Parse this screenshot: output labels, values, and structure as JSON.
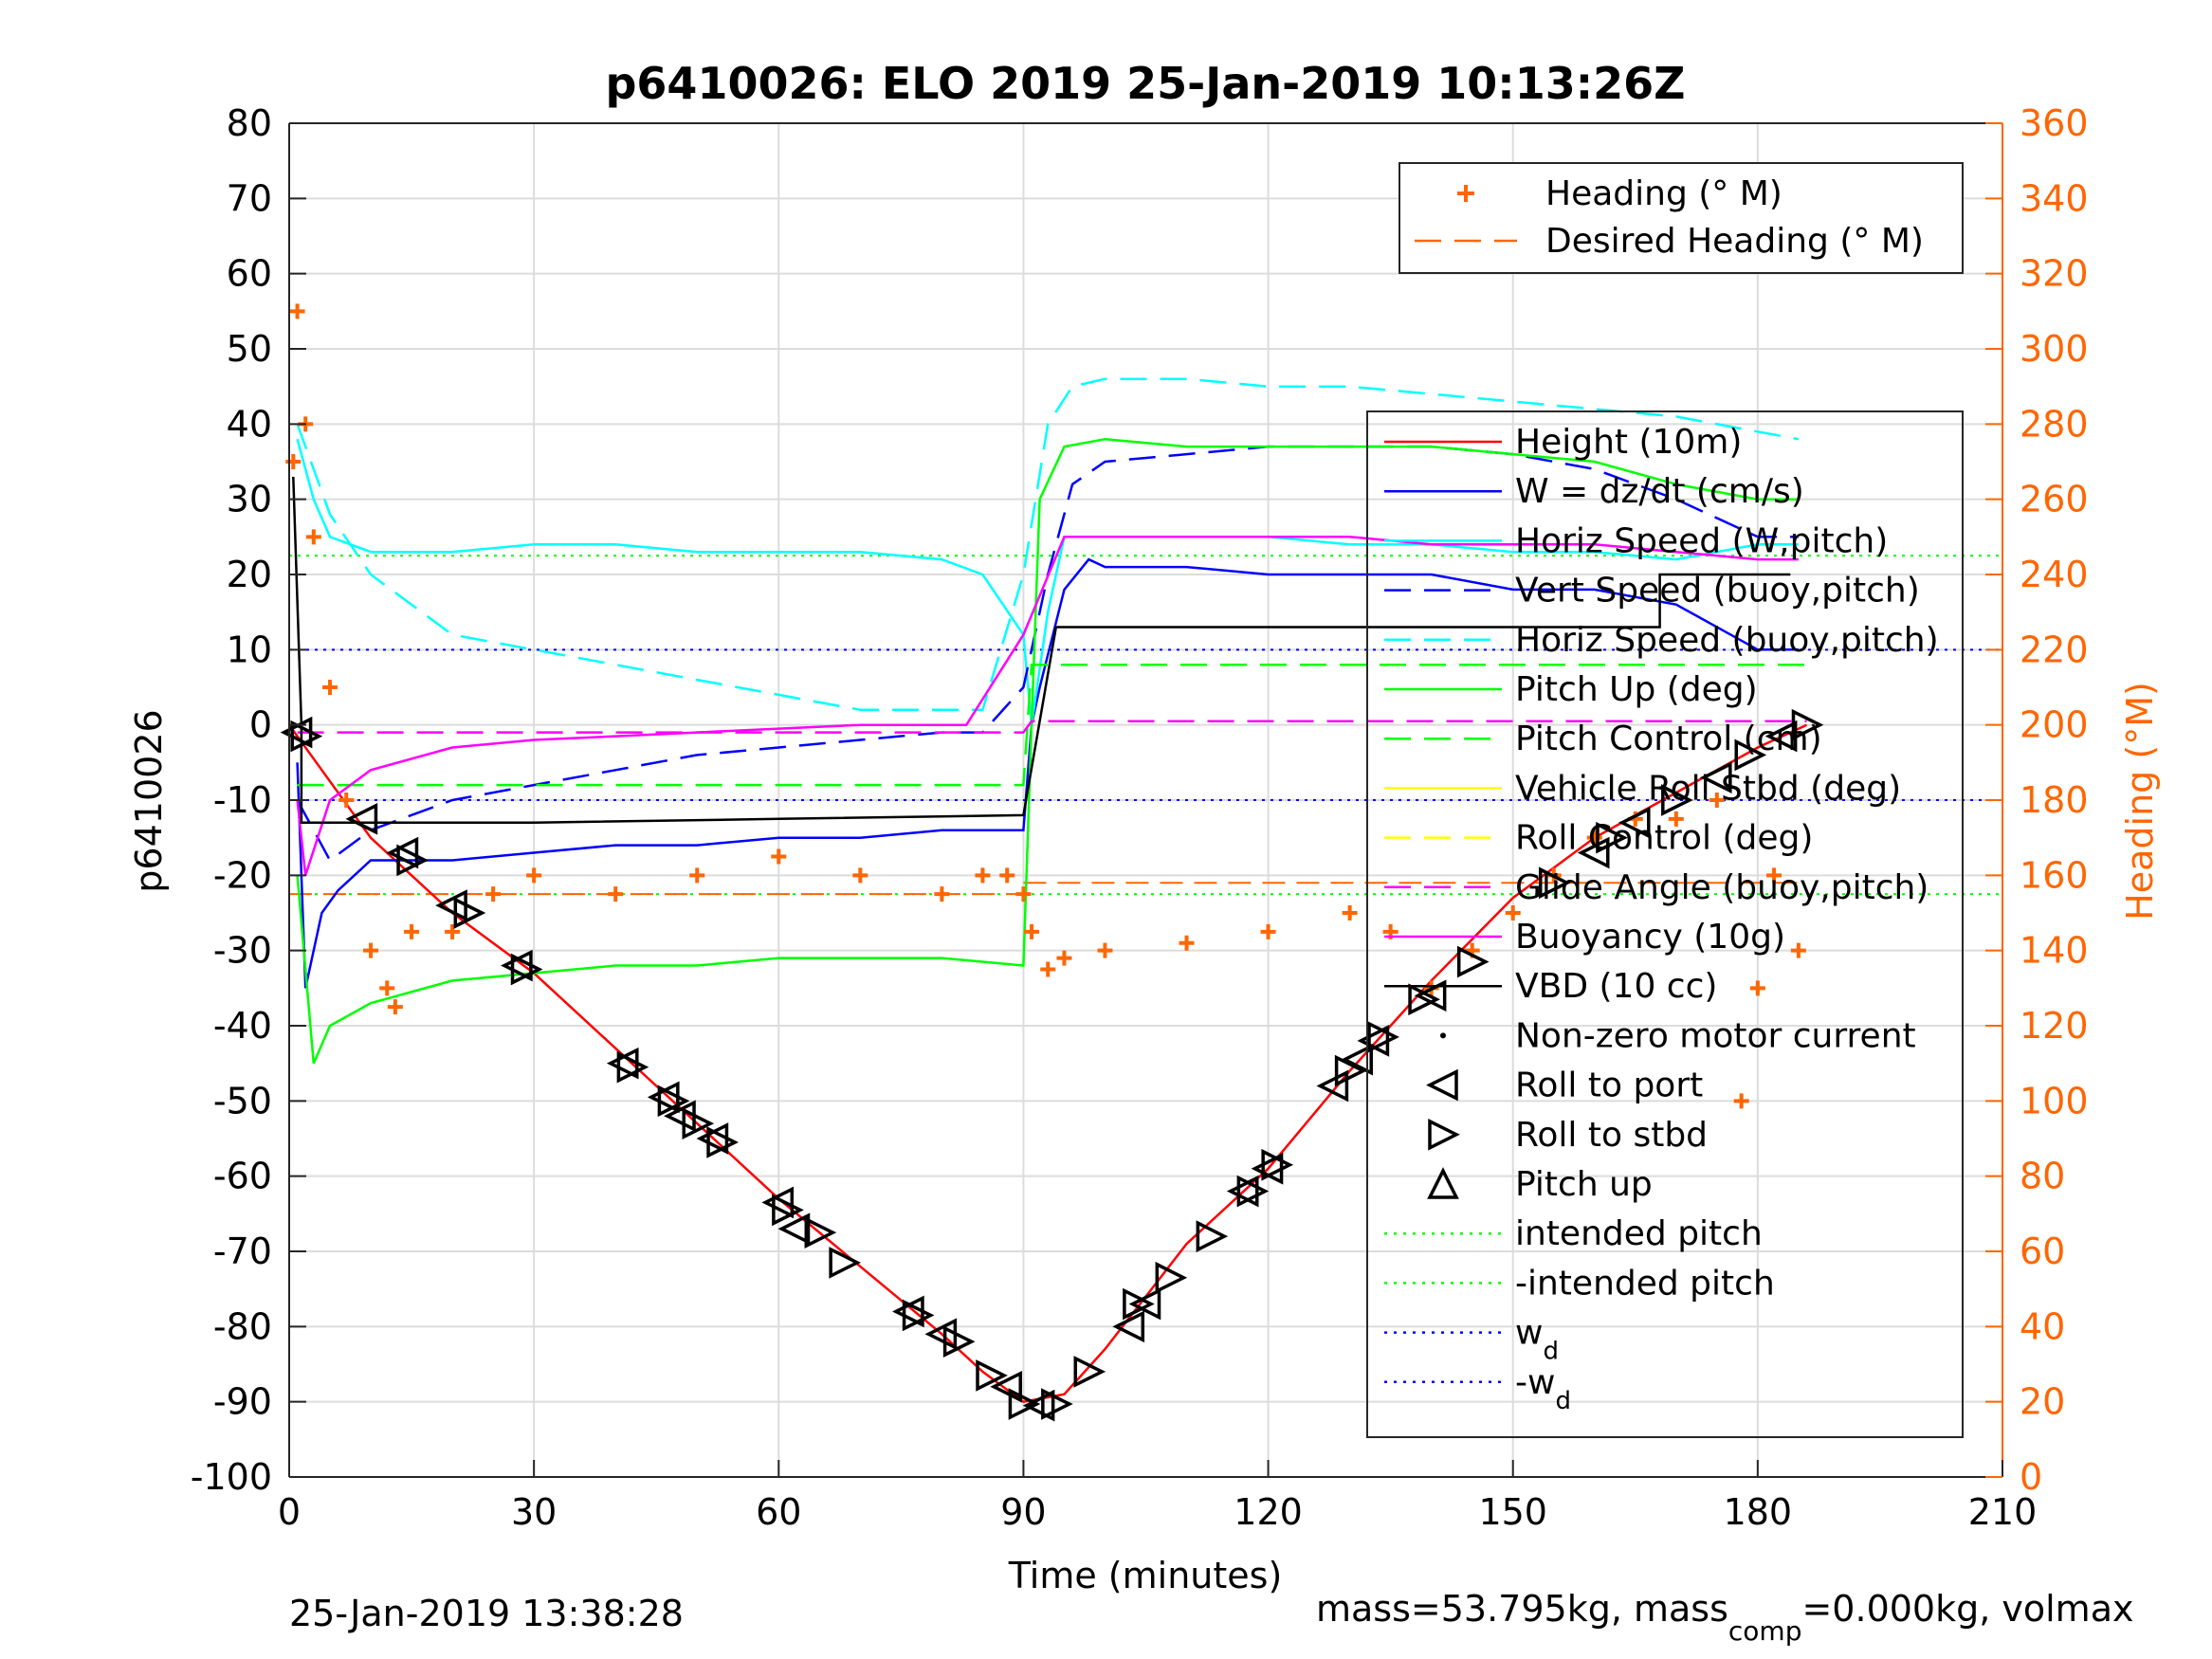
{
  "chart_data": {
    "type": "line",
    "title": "p6410026: ELO 2019 25-Jan-2019 10:13:26Z",
    "xlabel": "Time (minutes)",
    "ylabel": "p6410026",
    "ylabel_right": "Heading (°M)",
    "xlim": [
      0,
      210
    ],
    "ylim": [
      -100,
      80
    ],
    "ylim_right": [
      0,
      360
    ],
    "x_ticks": [
      "0",
      "30",
      "60",
      "90",
      "120",
      "150",
      "180",
      "210"
    ],
    "y_ticks": [
      "-100",
      "-90",
      "-80",
      "-70",
      "-60",
      "-50",
      "-40",
      "-30",
      "-20",
      "-10",
      "0",
      "10",
      "20",
      "30",
      "40",
      "50",
      "60",
      "70",
      "80"
    ],
    "y_ticks_right": [
      "0",
      "20",
      "40",
      "60",
      "80",
      "100",
      "120",
      "140",
      "160",
      "180",
      "200",
      "220",
      "240",
      "260",
      "280",
      "300",
      "320",
      "340",
      "360"
    ],
    "grid": true,
    "legend_top": [
      {
        "label": "Heading (° M)",
        "style": "plus",
        "color": "#ff6600"
      },
      {
        "label": "Desired Heading (° M)",
        "style": "dashed",
        "color": "#ff6600"
      }
    ],
    "legend_main": [
      {
        "label": "Height (10m)",
        "style": "solid",
        "color": "#ff0000"
      },
      {
        "label": "W = dz/dt (cm/s)",
        "style": "solid",
        "color": "#0000ff"
      },
      {
        "label": "Horiz Speed (W,pitch)",
        "style": "solid",
        "color": "#00ffff"
      },
      {
        "label": "Vert Speed (buoy,pitch)",
        "style": "dashed",
        "color": "#0000ff"
      },
      {
        "label": "Horiz Speed (buoy,pitch)",
        "style": "dashed",
        "color": "#00ffff"
      },
      {
        "label": "Pitch Up (deg)",
        "style": "solid",
        "color": "#00ff00"
      },
      {
        "label": "Pitch Control (cm)",
        "style": "dashed",
        "color": "#00ff00"
      },
      {
        "label": "Vehicle Roll Stbd (deg)",
        "style": "solid",
        "color": "#ffff00"
      },
      {
        "label": "Roll Control (deg)",
        "style": "dashed",
        "color": "#ffff00"
      },
      {
        "label": "Glide Angle (buoy,pitch)",
        "style": "dashed",
        "color": "#ff00ff"
      },
      {
        "label": "Buoyancy (10g)",
        "style": "solid",
        "color": "#ff00ff"
      },
      {
        "label": "VBD (10 cc)",
        "style": "solid",
        "color": "#000000"
      },
      {
        "label": "Non-zero motor current",
        "style": "dot",
        "color": "#000000"
      },
      {
        "label": "Roll to port",
        "style": "tri-left",
        "color": "#000000"
      },
      {
        "label": "Roll to stbd",
        "style": "tri-right",
        "color": "#000000"
      },
      {
        "label": "Pitch up",
        "style": "tri-up",
        "color": "#000000"
      },
      {
        "label": "intended pitch",
        "style": "dotted",
        "color": "#00ff00"
      },
      {
        "label": "-intended pitch",
        "style": "dotted",
        "color": "#00ff00"
      },
      {
        "label": "w",
        "sub": "d",
        "style": "dotted",
        "color": "#0000ff"
      },
      {
        "label": "-w",
        "sub": "d",
        "style": "dotted",
        "color": "#0000ff"
      }
    ],
    "series": [
      {
        "name": "Height (10m)",
        "color": "#ff0000",
        "x": [
          0,
          10,
          20,
          30,
          40,
          50,
          60,
          70,
          80,
          85,
          90,
          95,
          100,
          110,
          120,
          130,
          140,
          150,
          160,
          170,
          180,
          186
        ],
        "y": [
          0,
          -15,
          -25,
          -33,
          -43,
          -53,
          -63,
          -72,
          -81,
          -86,
          -90,
          -89,
          -83,
          -69,
          -59,
          -46,
          -34,
          -23,
          -15,
          -9,
          -3,
          0
        ]
      },
      {
        "name": "W = dz/dt (cm/s)",
        "color": "#0000ff",
        "x": [
          1,
          2,
          4,
          6,
          10,
          20,
          30,
          40,
          50,
          60,
          70,
          80,
          90,
          91,
          92,
          95,
          98,
          100,
          110,
          120,
          130,
          140,
          150,
          160,
          170,
          180,
          185
        ],
        "y": [
          -5,
          -35,
          -25,
          -22,
          -18,
          -18,
          -17,
          -16,
          -16,
          -15,
          -15,
          -14,
          -14,
          0,
          5,
          18,
          22,
          21,
          21,
          20,
          20,
          20,
          18,
          18,
          16,
          10,
          10
        ]
      },
      {
        "name": "Horiz Speed (W,pitch)",
        "color": "#00ffff",
        "x": [
          1,
          3,
          5,
          10,
          20,
          30,
          40,
          50,
          60,
          70,
          80,
          85,
          90,
          91,
          93,
          95,
          100,
          110,
          120,
          130,
          140,
          150,
          160,
          170,
          180,
          185
        ],
        "y": [
          38,
          30,
          25,
          23,
          23,
          24,
          24,
          23,
          23,
          23,
          22,
          20,
          12,
          0,
          15,
          25,
          25,
          25,
          25,
          24,
          24,
          23,
          23,
          22,
          24,
          24
        ]
      },
      {
        "name": "Vert Speed (buoy,pitch)",
        "color": "#0000ff",
        "x": [
          1,
          5,
          10,
          20,
          30,
          40,
          50,
          60,
          70,
          80,
          85,
          90,
          93,
          96,
          100,
          110,
          120,
          130,
          140,
          150,
          160,
          170,
          180,
          185
        ],
        "y": [
          -10,
          -18,
          -14,
          -10,
          -8,
          -6,
          -4,
          -3,
          -2,
          -1,
          -1,
          5,
          20,
          32,
          35,
          36,
          37,
          37,
          37,
          36,
          34,
          30,
          25,
          25
        ]
      },
      {
        "name": "Horiz Speed (buoy,pitch)",
        "color": "#00ffff",
        "x": [
          1,
          5,
          10,
          20,
          30,
          40,
          50,
          60,
          70,
          80,
          85,
          90,
          93,
          96,
          100,
          110,
          120,
          130,
          140,
          150,
          160,
          170,
          180,
          185
        ],
        "y": [
          40,
          28,
          20,
          12,
          10,
          8,
          6,
          4,
          2,
          2,
          2,
          20,
          40,
          45,
          46,
          46,
          45,
          45,
          44,
          43,
          42,
          41,
          39,
          38
        ]
      },
      {
        "name": "Pitch Up (deg)",
        "color": "#00ff00",
        "x": [
          1,
          3,
          5,
          10,
          20,
          30,
          40,
          50,
          60,
          70,
          80,
          90,
          91,
          92,
          95,
          100,
          110,
          120,
          130,
          140,
          150,
          160,
          170,
          180,
          185
        ],
        "y": [
          -20,
          -45,
          -40,
          -37,
          -34,
          -33,
          -32,
          -32,
          -31,
          -31,
          -31,
          -32,
          0,
          30,
          37,
          38,
          37,
          37,
          37,
          37,
          36,
          35,
          32,
          30,
          30
        ]
      },
      {
        "name": "Pitch Control (cm)",
        "color": "#00ff00",
        "x": [
          1,
          5,
          30,
          60,
          90,
          91,
          120,
          150,
          186
        ],
        "y": [
          -8,
          -8,
          -8,
          -8,
          -8,
          8,
          8,
          8,
          8
        ]
      },
      {
        "name": "Buoyancy (10g)",
        "color": "#ff00ff",
        "x": [
          1,
          2,
          5,
          10,
          20,
          30,
          40,
          50,
          60,
          70,
          80,
          83,
          90,
          95,
          100,
          110,
          120,
          130,
          140,
          150,
          160,
          170,
          180,
          185
        ],
        "y": [
          -10,
          -20,
          -10,
          -6,
          -3,
          -2,
          -1.5,
          -1,
          -0.5,
          0,
          0,
          0,
          12,
          25,
          25,
          25,
          25,
          25,
          24,
          24,
          24,
          23,
          22,
          22
        ]
      },
      {
        "name": "Glide Angle (buoy,pitch)",
        "color": "#ff00ff",
        "x": [
          1,
          5,
          30,
          60,
          90,
          91,
          120,
          150,
          186
        ],
        "y": [
          -1,
          -1,
          -1,
          -1,
          -1,
          0.5,
          0.5,
          0.5,
          0.5
        ]
      },
      {
        "name": "VBD (10 cc)",
        "color": "#000000",
        "x": [
          0.5,
          1.5,
          1.5,
          30,
          60,
          90,
          94,
          95,
          120,
          150,
          168,
          168,
          184
        ],
        "y": [
          33,
          0,
          -13,
          -13,
          -12.5,
          -12,
          13,
          13,
          13,
          13,
          13,
          20,
          20
        ]
      },
      {
        "name": "Heading (° M)",
        "color": "#ff6600",
        "axis": "right",
        "x": [
          0.5,
          1,
          2,
          3,
          5,
          7,
          10,
          12,
          13,
          15,
          20,
          25,
          30,
          40,
          50,
          60,
          70,
          80,
          85,
          88,
          90,
          91,
          93,
          95,
          100,
          110,
          120,
          130,
          135,
          140,
          145,
          150,
          155,
          160,
          165,
          170,
          175,
          178,
          180,
          182,
          185
        ],
        "y": [
          270,
          310,
          280,
          250,
          210,
          180,
          140,
          130,
          125,
          145,
          145,
          155,
          160,
          155,
          160,
          165,
          160,
          155,
          160,
          160,
          155,
          145,
          135,
          138,
          140,
          142,
          145,
          150,
          145,
          130,
          140,
          150,
          160,
          170,
          175,
          175,
          180,
          100,
          130,
          160,
          140
        ]
      }
    ],
    "depth_markers": {
      "roll_to_port_x": [
        1,
        9,
        14,
        20,
        28,
        41,
        46,
        48,
        52,
        60,
        62,
        76,
        80,
        88,
        92,
        103,
        105,
        117,
        120,
        128,
        131,
        133,
        140,
        160,
        165,
        175,
        183
      ],
      "roll_to_port_y": [
        -1,
        -12.5,
        -17,
        -24,
        -32,
        -45,
        -49.5,
        -52,
        -55,
        -63.5,
        -67,
        -78,
        -81,
        -88,
        -90.5,
        -80,
        -77,
        -62,
        -59,
        -48,
        -44.5,
        -42,
        -36,
        -17,
        -13,
        -7,
        -1.5
      ],
      "roll_to_stbd_x": [
        2,
        15,
        22,
        29,
        42,
        47,
        50,
        53,
        61,
        65,
        68,
        77,
        82,
        86,
        90,
        94,
        98,
        104,
        108,
        113,
        118,
        121,
        130,
        134,
        139,
        145,
        155,
        162,
        170,
        179,
        186
      ],
      "roll_to_stbd_y": [
        -1.5,
        -18,
        -25,
        -32.5,
        -45.5,
        -50,
        -53,
        -55.5,
        -64.5,
        -67.5,
        -71.5,
        -78.5,
        -82,
        -86.5,
        -90.3,
        -90.3,
        -86,
        -77,
        -73.5,
        -68,
        -62,
        -58.5,
        -46,
        -41.5,
        -36.5,
        -31.5,
        -21,
        -15,
        -10,
        -4,
        0
      ]
    }
  },
  "footer": {
    "timestamp": "25-Jan-2019 13:38:28",
    "mass_text": "mass=53.795kg, mass",
    "mass_sub": "comp",
    "mass_text2": "=0.000kg, volmax"
  }
}
